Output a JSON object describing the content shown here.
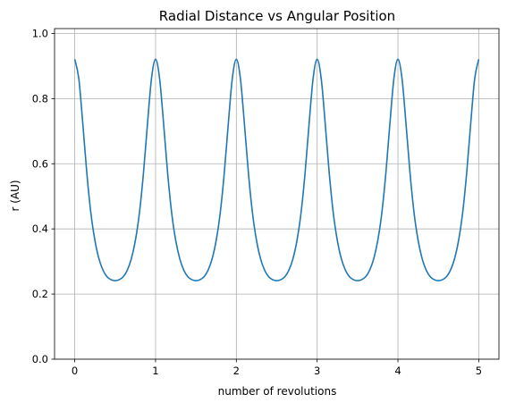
{
  "chart_data": {
    "type": "line",
    "title": "Radial Distance vs Angular Position",
    "xlabel": "number of revolutions",
    "ylabel": "r (AU)",
    "xlim": [
      -0.25,
      5.25
    ],
    "ylim": [
      0.0,
      1.015
    ],
    "xticks": [
      0,
      1,
      2,
      3,
      4,
      5
    ],
    "xtick_labels": [
      "0",
      "1",
      "2",
      "3",
      "4",
      "5"
    ],
    "yticks": [
      0.0,
      0.2,
      0.4,
      0.6,
      0.8,
      1.0
    ],
    "ytick_labels": [
      "0.0",
      "0.2",
      "0.4",
      "0.6",
      "0.8",
      "1.0"
    ],
    "grid": true,
    "series": [
      {
        "color": "#1f77b4",
        "x": [
          0.0,
          0.05,
          0.1,
          0.15,
          0.2,
          0.25,
          0.3,
          0.35,
          0.4,
          0.45,
          0.5,
          0.55,
          0.6,
          0.65,
          0.7,
          0.75,
          0.8,
          0.85,
          0.9,
          0.95,
          1.0,
          1.05,
          1.1,
          1.15,
          1.2,
          1.25,
          1.3,
          1.35,
          1.4,
          1.45,
          1.5,
          1.55,
          1.6,
          1.65,
          1.7,
          1.75,
          1.8,
          1.85,
          1.9,
          1.95,
          2.0,
          2.05,
          2.1,
          2.15,
          2.2,
          2.25,
          2.3,
          2.35,
          2.4,
          2.45,
          2.5,
          2.55,
          2.6,
          2.65,
          2.7,
          2.75,
          2.8,
          2.85,
          2.9,
          2.95,
          3.0,
          3.05,
          3.1,
          3.15,
          3.2,
          3.25,
          3.3,
          3.35,
          3.4,
          3.45,
          3.5,
          3.55,
          3.6,
          3.65,
          3.7,
          3.75,
          3.8,
          3.85,
          3.9,
          3.95,
          4.0,
          4.05,
          4.1,
          4.15,
          4.2,
          4.25,
          4.3,
          4.35,
          4.4,
          4.45,
          4.5,
          4.55,
          4.6,
          4.65,
          4.7,
          4.75,
          4.8,
          4.85,
          4.9,
          4.95,
          5.0
        ],
        "y": [
          0.921,
          0.862,
          0.722,
          0.57,
          0.448,
          0.364,
          0.308,
          0.273,
          0.253,
          0.244,
          0.241,
          0.244,
          0.253,
          0.273,
          0.308,
          0.364,
          0.448,
          0.57,
          0.722,
          0.862,
          0.921,
          0.862,
          0.722,
          0.57,
          0.448,
          0.364,
          0.308,
          0.273,
          0.253,
          0.244,
          0.241,
          0.244,
          0.253,
          0.273,
          0.308,
          0.364,
          0.448,
          0.57,
          0.722,
          0.862,
          0.921,
          0.862,
          0.722,
          0.57,
          0.448,
          0.364,
          0.308,
          0.273,
          0.253,
          0.244,
          0.241,
          0.244,
          0.253,
          0.273,
          0.308,
          0.364,
          0.448,
          0.57,
          0.722,
          0.862,
          0.921,
          0.862,
          0.722,
          0.57,
          0.448,
          0.364,
          0.308,
          0.273,
          0.253,
          0.244,
          0.241,
          0.244,
          0.253,
          0.273,
          0.308,
          0.364,
          0.448,
          0.57,
          0.722,
          0.862,
          0.921,
          0.862,
          0.722,
          0.57,
          0.448,
          0.364,
          0.308,
          0.273,
          0.253,
          0.244,
          0.241,
          0.244,
          0.253,
          0.273,
          0.308,
          0.364,
          0.448,
          0.57,
          0.722,
          0.862,
          0.921
        ]
      }
    ]
  }
}
